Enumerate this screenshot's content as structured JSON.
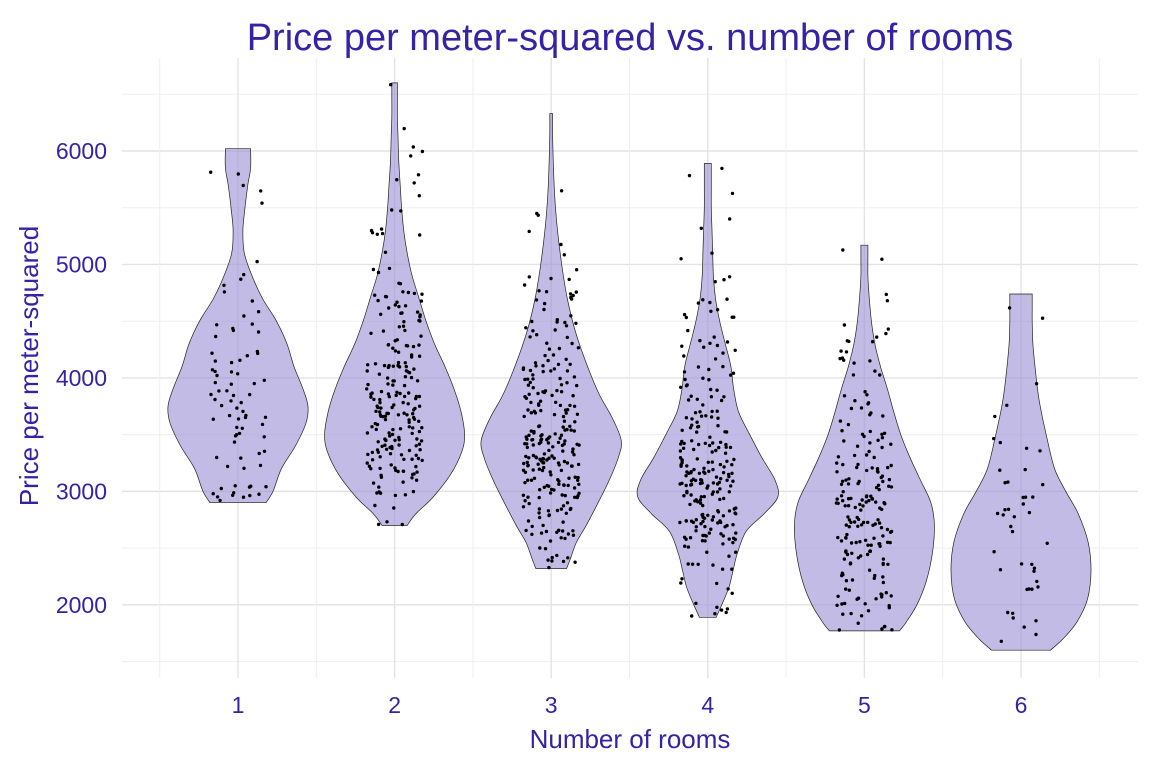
{
  "chart_data": {
    "type": "violin",
    "title": "Price per meter-squared vs. number of rooms",
    "xlabel": "Number of rooms",
    "ylabel": "Price per meter-squared",
    "categories": [
      "1",
      "2",
      "3",
      "4",
      "5",
      "6"
    ],
    "y_ticks": [
      "2000",
      "3000",
      "4000",
      "5000",
      "6000"
    ],
    "ylim": [
      1450,
      6600
    ],
    "grid": true,
    "colors": {
      "text": "#3622a3",
      "violin_fill": "#9d92d6",
      "points": "#000000"
    },
    "groups": [
      {
        "category": "1",
        "n_points": 80,
        "min": 2900,
        "max": 6020,
        "density": [
          [
            2900,
            0.4
          ],
          [
            3000,
            0.5
          ],
          [
            3200,
            0.62
          ],
          [
            3400,
            0.82
          ],
          [
            3600,
            0.97
          ],
          [
            3750,
            1.0
          ],
          [
            3900,
            0.93
          ],
          [
            4100,
            0.8
          ],
          [
            4300,
            0.7
          ],
          [
            4500,
            0.55
          ],
          [
            4700,
            0.35
          ],
          [
            4900,
            0.2
          ],
          [
            5100,
            0.09
          ],
          [
            5300,
            0.07
          ],
          [
            5500,
            0.1
          ],
          [
            5700,
            0.14
          ],
          [
            5850,
            0.18
          ],
          [
            6020,
            0.18
          ]
        ]
      },
      {
        "category": "2",
        "n_points": 220,
        "min": 2700,
        "max": 6600,
        "density": [
          [
            2700,
            0.18
          ],
          [
            2800,
            0.3
          ],
          [
            2950,
            0.55
          ],
          [
            3150,
            0.8
          ],
          [
            3350,
            0.96
          ],
          [
            3500,
            1.0
          ],
          [
            3700,
            0.95
          ],
          [
            3900,
            0.85
          ],
          [
            4100,
            0.72
          ],
          [
            4300,
            0.57
          ],
          [
            4500,
            0.45
          ],
          [
            4700,
            0.35
          ],
          [
            4900,
            0.25
          ],
          [
            5100,
            0.18
          ],
          [
            5300,
            0.13
          ],
          [
            5500,
            0.1
          ],
          [
            5700,
            0.08
          ],
          [
            5900,
            0.06
          ],
          [
            6100,
            0.05
          ],
          [
            6300,
            0.04
          ],
          [
            6500,
            0.04
          ],
          [
            6600,
            0.04
          ]
        ]
      },
      {
        "category": "3",
        "n_points": 260,
        "min": 2320,
        "max": 6330,
        "density": [
          [
            2320,
            0.22
          ],
          [
            2400,
            0.27
          ],
          [
            2550,
            0.36
          ],
          [
            2700,
            0.5
          ],
          [
            2900,
            0.67
          ],
          [
            3100,
            0.83
          ],
          [
            3300,
            0.96
          ],
          [
            3450,
            1.0
          ],
          [
            3650,
            0.87
          ],
          [
            3850,
            0.69
          ],
          [
            4100,
            0.52
          ],
          [
            4400,
            0.35
          ],
          [
            4700,
            0.23
          ],
          [
            5000,
            0.15
          ],
          [
            5300,
            0.09
          ],
          [
            5600,
            0.05
          ],
          [
            5900,
            0.03
          ],
          [
            6150,
            0.02
          ],
          [
            6330,
            0.02
          ]
        ]
      },
      {
        "category": "4",
        "n_points": 240,
        "min": 1890,
        "max": 5890,
        "density": [
          [
            1890,
            0.12
          ],
          [
            2000,
            0.2
          ],
          [
            2150,
            0.3
          ],
          [
            2300,
            0.36
          ],
          [
            2450,
            0.42
          ],
          [
            2650,
            0.55
          ],
          [
            2800,
            0.8
          ],
          [
            2950,
            1.0
          ],
          [
            3100,
            0.96
          ],
          [
            3300,
            0.77
          ],
          [
            3500,
            0.6
          ],
          [
            3700,
            0.44
          ],
          [
            3900,
            0.37
          ],
          [
            4100,
            0.33
          ],
          [
            4300,
            0.25
          ],
          [
            4500,
            0.17
          ],
          [
            4700,
            0.11
          ],
          [
            4900,
            0.08
          ],
          [
            5100,
            0.07
          ],
          [
            5300,
            0.06
          ],
          [
            5500,
            0.05
          ],
          [
            5700,
            0.05
          ],
          [
            5890,
            0.05
          ]
        ]
      },
      {
        "category": "5",
        "n_points": 200,
        "min": 1770,
        "max": 5170,
        "density": [
          [
            1770,
            0.5
          ],
          [
            1850,
            0.6
          ],
          [
            2000,
            0.75
          ],
          [
            2200,
            0.88
          ],
          [
            2450,
            0.97
          ],
          [
            2700,
            1.0
          ],
          [
            2900,
            0.95
          ],
          [
            3100,
            0.8
          ],
          [
            3300,
            0.65
          ],
          [
            3500,
            0.52
          ],
          [
            3700,
            0.42
          ],
          [
            3900,
            0.33
          ],
          [
            4100,
            0.23
          ],
          [
            4300,
            0.15
          ],
          [
            4500,
            0.1
          ],
          [
            4700,
            0.07
          ],
          [
            4900,
            0.05
          ],
          [
            5050,
            0.05
          ],
          [
            5170,
            0.05
          ]
        ]
      },
      {
        "category": "6",
        "n_points": 45,
        "min": 1600,
        "max": 4740,
        "density": [
          [
            1600,
            0.42
          ],
          [
            1700,
            0.6
          ],
          [
            1850,
            0.8
          ],
          [
            2050,
            0.95
          ],
          [
            2300,
            1.0
          ],
          [
            2550,
            0.96
          ],
          [
            2800,
            0.82
          ],
          [
            3000,
            0.64
          ],
          [
            3200,
            0.48
          ],
          [
            3500,
            0.36
          ],
          [
            3800,
            0.26
          ],
          [
            4100,
            0.2
          ],
          [
            4300,
            0.17
          ],
          [
            4500,
            0.16
          ],
          [
            4600,
            0.16
          ],
          [
            4740,
            0.16
          ]
        ]
      }
    ]
  }
}
